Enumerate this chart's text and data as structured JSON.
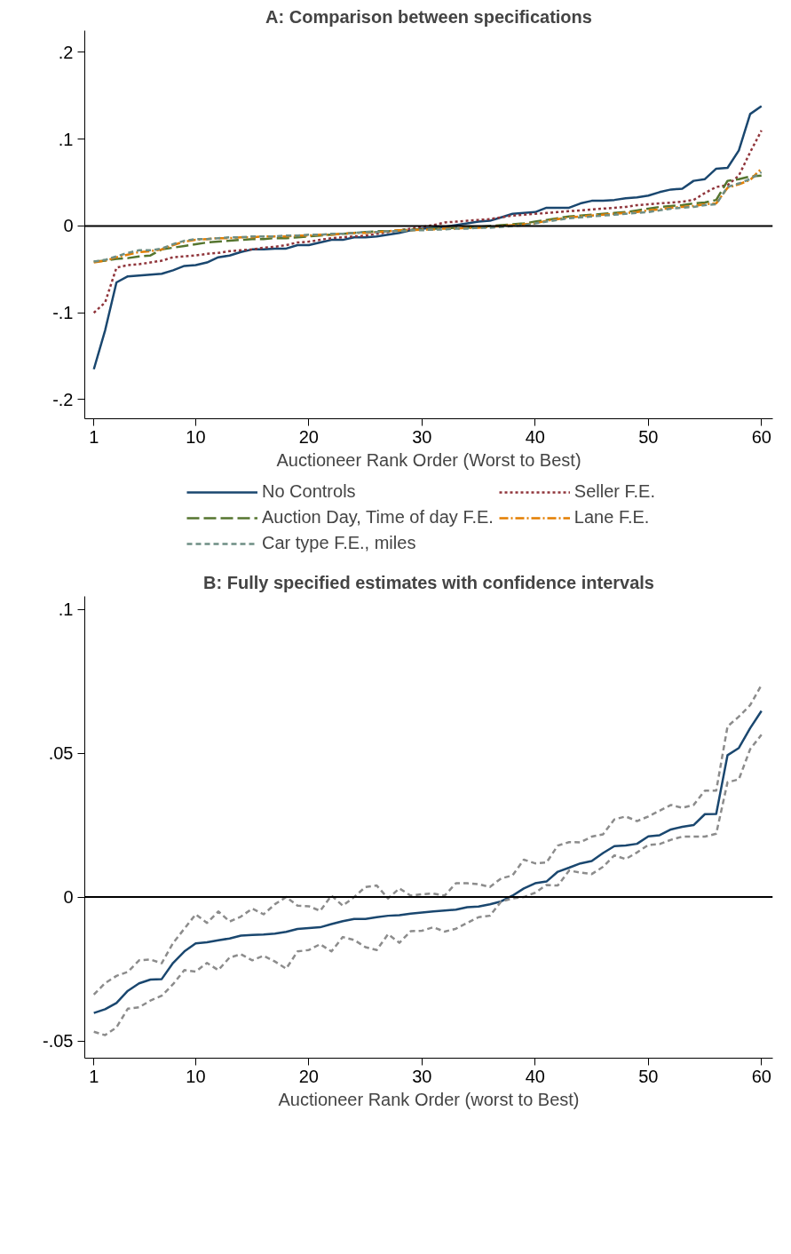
{
  "chart_data": [
    {
      "type": "line",
      "title": "A: Comparison between specifications",
      "xlabel": "Auctioneer Rank Order (Worst to Best)",
      "x": [
        1,
        2,
        3,
        4,
        5,
        6,
        7,
        8,
        9,
        10,
        11,
        12,
        13,
        14,
        15,
        16,
        17,
        18,
        19,
        20,
        21,
        22,
        23,
        24,
        25,
        26,
        27,
        28,
        29,
        30,
        31,
        32,
        33,
        34,
        35,
        36,
        37,
        38,
        39,
        40,
        41,
        42,
        43,
        44,
        45,
        46,
        47,
        48,
        49,
        50,
        51,
        52,
        53,
        54,
        55,
        56,
        57,
        58,
        59,
        60
      ],
      "xlim": [
        0.2,
        61
      ],
      "xticks": [
        1,
        10,
        20,
        30,
        40,
        50,
        60
      ],
      "ylim": [
        -0.222,
        0.225
      ],
      "yticks": [
        {
          "value": -0.2,
          "label": "-.2"
        },
        {
          "value": -0.1,
          "label": "-.1"
        },
        0,
        {
          "value": 0.1,
          "label": ".1"
        },
        {
          "value": 0.2,
          "label": ".2"
        }
      ],
      "grid": false,
      "legend": "bottom",
      "marker": "none",
      "ref_lines": [
        {
          "axis": "y",
          "value": 0,
          "color": "#000000"
        }
      ],
      "series": [
        {
          "name": "No Controls",
          "color": "#1a476f",
          "line_style": "solid",
          "values": [
            -0.165,
            -0.12,
            -0.065,
            -0.058,
            -0.057,
            -0.056,
            -0.055,
            -0.051,
            -0.046,
            -0.045,
            -0.042,
            -0.036,
            -0.034,
            -0.03,
            -0.027,
            -0.027,
            -0.026,
            -0.026,
            -0.022,
            -0.022,
            -0.019,
            -0.016,
            -0.016,
            -0.013,
            -0.013,
            -0.012,
            -0.01,
            -0.008,
            -0.005,
            -0.003,
            -0.002,
            -0.001,
            0.001,
            0.003,
            0.005,
            0.006,
            0.01,
            0.014,
            0.015,
            0.016,
            0.021,
            0.021,
            0.021,
            0.026,
            0.029,
            0.029,
            0.03,
            0.032,
            0.033,
            0.035,
            0.039,
            0.042,
            0.043,
            0.052,
            0.054,
            0.066,
            0.067,
            0.087,
            0.129,
            0.138
          ]
        },
        {
          "name": "Seller F.E.",
          "color": "#90353b",
          "line_style": "dotted",
          "values": [
            -0.1,
            -0.088,
            -0.048,
            -0.045,
            -0.044,
            -0.042,
            -0.04,
            -0.036,
            -0.035,
            -0.034,
            -0.032,
            -0.031,
            -0.029,
            -0.028,
            -0.027,
            -0.025,
            -0.024,
            -0.022,
            -0.019,
            -0.018,
            -0.016,
            -0.014,
            -0.013,
            -0.012,
            -0.011,
            -0.009,
            -0.007,
            -0.005,
            -0.003,
            -0.001,
            0.001,
            0.004,
            0.005,
            0.006,
            0.007,
            0.008,
            0.01,
            0.012,
            0.013,
            0.014,
            0.015,
            0.016,
            0.017,
            0.018,
            0.019,
            0.02,
            0.021,
            0.022,
            0.024,
            0.025,
            0.026,
            0.027,
            0.028,
            0.03,
            0.038,
            0.045,
            0.047,
            0.058,
            0.085,
            0.11
          ]
        },
        {
          "name": "Auction Day, Time of day F.E.",
          "color": "#55752f",
          "line_style": "longdash",
          "values": [
            -0.041,
            -0.04,
            -0.038,
            -0.037,
            -0.035,
            -0.034,
            -0.027,
            -0.025,
            -0.023,
            -0.021,
            -0.019,
            -0.018,
            -0.017,
            -0.016,
            -0.015,
            -0.015,
            -0.014,
            -0.014,
            -0.013,
            -0.012,
            -0.011,
            -0.01,
            -0.009,
            -0.008,
            -0.007,
            -0.006,
            -0.006,
            -0.005,
            -0.004,
            -0.004,
            -0.003,
            -0.003,
            -0.002,
            -0.002,
            -0.001,
            0.0,
            0.001,
            0.002,
            0.003,
            0.005,
            0.007,
            0.009,
            0.011,
            0.012,
            0.013,
            0.014,
            0.015,
            0.016,
            0.018,
            0.02,
            0.022,
            0.023,
            0.024,
            0.026,
            0.027,
            0.03,
            0.052,
            0.054,
            0.057,
            0.058
          ]
        },
        {
          "name": "Lane F.E.",
          "color": "#e37e00",
          "line_style": "dashdot",
          "values": [
            -0.042,
            -0.04,
            -0.036,
            -0.033,
            -0.03,
            -0.029,
            -0.027,
            -0.022,
            -0.018,
            -0.016,
            -0.015,
            -0.014,
            -0.014,
            -0.013,
            -0.013,
            -0.012,
            -0.012,
            -0.012,
            -0.011,
            -0.011,
            -0.01,
            -0.01,
            -0.009,
            -0.008,
            -0.008,
            -0.007,
            -0.006,
            -0.005,
            -0.005,
            -0.004,
            -0.004,
            -0.003,
            -0.003,
            -0.002,
            -0.002,
            -0.001,
            0.0,
            0.001,
            0.002,
            0.003,
            0.006,
            0.008,
            0.01,
            0.011,
            0.012,
            0.013,
            0.014,
            0.015,
            0.016,
            0.018,
            0.019,
            0.021,
            0.022,
            0.023,
            0.025,
            0.026,
            0.044,
            0.048,
            0.053,
            0.066
          ]
        },
        {
          "name": "Car type F.E., miles",
          "color": "#6e8e84",
          "line_style": "dashed",
          "values": [
            -0.041,
            -0.039,
            -0.035,
            -0.031,
            -0.028,
            -0.028,
            -0.026,
            -0.021,
            -0.017,
            -0.015,
            -0.015,
            -0.014,
            -0.013,
            -0.013,
            -0.012,
            -0.012,
            -0.012,
            -0.011,
            -0.011,
            -0.01,
            -0.01,
            -0.009,
            -0.009,
            -0.008,
            -0.007,
            -0.007,
            -0.006,
            -0.006,
            -0.005,
            -0.005,
            -0.004,
            -0.004,
            -0.003,
            -0.003,
            -0.002,
            -0.002,
            -0.001,
            0.0,
            0.001,
            0.003,
            0.005,
            0.007,
            0.009,
            0.01,
            0.011,
            0.012,
            0.013,
            0.014,
            0.015,
            0.016,
            0.018,
            0.02,
            0.021,
            0.022,
            0.024,
            0.025,
            0.045,
            0.049,
            0.054,
            0.062
          ]
        }
      ]
    },
    {
      "type": "line",
      "title": "B: Fully specified estimates with confidence intervals",
      "xlabel": "Auctioneer Rank Order (worst to Best)",
      "x": [
        1,
        2,
        3,
        4,
        5,
        6,
        7,
        8,
        9,
        10,
        11,
        12,
        13,
        14,
        15,
        16,
        17,
        18,
        19,
        20,
        21,
        22,
        23,
        24,
        25,
        26,
        27,
        28,
        29,
        30,
        31,
        32,
        33,
        34,
        35,
        36,
        37,
        38,
        39,
        40,
        41,
        42,
        43,
        44,
        45,
        46,
        47,
        48,
        49,
        50,
        51,
        52,
        53,
        54,
        55,
        56,
        57,
        58,
        59,
        60
      ],
      "xlim": [
        0.2,
        61
      ],
      "xticks": [
        1,
        10,
        20,
        30,
        40,
        50,
        60
      ],
      "ylim": [
        -0.056,
        0.1045
      ],
      "yticks": [
        {
          "value": -0.05,
          "label": "-.05"
        },
        0,
        {
          "value": 0.05,
          "label": ".05"
        },
        {
          "value": 0.1,
          "label": ".1"
        }
      ],
      "grid": false,
      "legend": false,
      "marker": "none",
      "ref_lines": [
        {
          "axis": "y",
          "value": 0,
          "color": "#000000"
        }
      ],
      "series": [
        {
          "color": "#1a476f",
          "line_style": "solid",
          "values": [
            -0.0403,
            -0.039,
            -0.0368,
            -0.0326,
            -0.03,
            -0.0287,
            -0.0285,
            -0.0229,
            -0.0189,
            -0.0161,
            -0.0157,
            -0.015,
            -0.0144,
            -0.0134,
            -0.0132,
            -0.013,
            -0.0127,
            -0.0121,
            -0.0111,
            -0.0108,
            -0.0105,
            -0.0094,
            -0.0084,
            -0.0076,
            -0.0076,
            -0.007,
            -0.0065,
            -0.0063,
            -0.0058,
            -0.0054,
            -0.005,
            -0.0047,
            -0.0044,
            -0.0035,
            -0.0033,
            -0.0025,
            -0.0015,
            0.0005,
            0.003,
            0.0048,
            0.0054,
            0.0088,
            0.0102,
            0.0117,
            0.0125,
            0.0153,
            0.0177,
            0.0179,
            0.0185,
            0.0211,
            0.0215,
            0.0235,
            0.0244,
            0.025,
            0.0288,
            0.0289,
            0.0493,
            0.0518,
            0.0587,
            0.0647
          ]
        },
        {
          "color": "#8c8c8c",
          "line_style": "dashed",
          "values": [
            -0.0339,
            -0.0299,
            -0.0274,
            -0.026,
            -0.022,
            -0.0217,
            -0.023,
            -0.016,
            -0.011,
            -0.006,
            -0.009,
            -0.005,
            -0.0085,
            -0.0068,
            -0.004,
            -0.006,
            -0.0025,
            0.0,
            -0.003,
            -0.0032,
            -0.0048,
            0.0005,
            -0.003,
            0.0,
            0.0035,
            0.004,
            -0.0005,
            0.003,
            0.0005,
            0.001,
            0.0012,
            0.0005,
            0.0048,
            0.0048,
            0.0045,
            0.0035,
            0.0065,
            0.0075,
            0.013,
            0.0117,
            0.012,
            0.0179,
            0.0191,
            0.019,
            0.021,
            0.0218,
            0.027,
            0.028,
            0.0264,
            0.028,
            0.03,
            0.032,
            0.031,
            0.032,
            0.037,
            0.037,
            0.0593,
            0.0627,
            0.0667,
            0.0737
          ]
        },
        {
          "color": "#8c8c8c",
          "line_style": "dashed",
          "values": [
            -0.0468,
            -0.048,
            -0.0453,
            -0.0388,
            -0.0383,
            -0.036,
            -0.0343,
            -0.0303,
            -0.0254,
            -0.0259,
            -0.0229,
            -0.0254,
            -0.021,
            -0.0199,
            -0.022,
            -0.0204,
            -0.0224,
            -0.0249,
            -0.0189,
            -0.0184,
            -0.0164,
            -0.0189,
            -0.0139,
            -0.0149,
            -0.0174,
            -0.0184,
            -0.0129,
            -0.0159,
            -0.0119,
            -0.0117,
            -0.0105,
            -0.012,
            -0.011,
            -0.009,
            -0.007,
            -0.0065,
            -0.0015,
            -0.0005,
            0.0,
            0.0015,
            0.0042,
            0.004,
            0.0092,
            0.0085,
            0.008,
            0.0105,
            0.0145,
            0.0132,
            0.0155,
            0.0181,
            0.0184,
            0.0199,
            0.021,
            0.021,
            0.021,
            0.022,
            0.0399,
            0.0409,
            0.0514,
            0.0564
          ]
        }
      ]
    }
  ]
}
